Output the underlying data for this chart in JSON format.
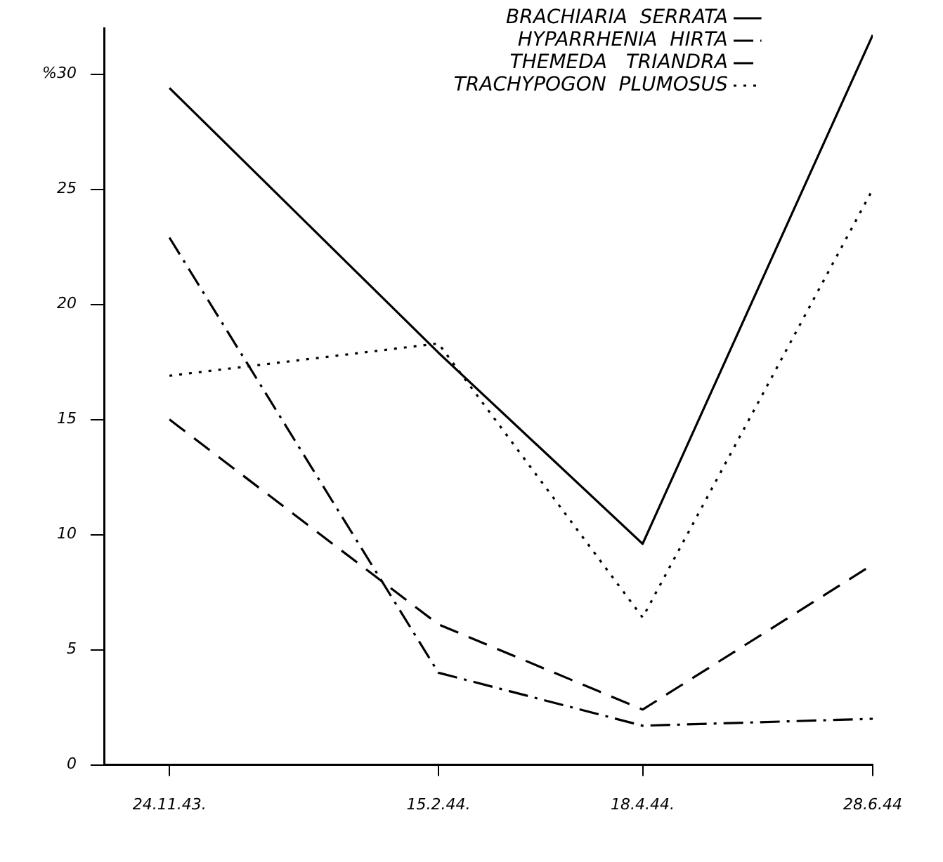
{
  "chart_data": {
    "type": "line",
    "x": [
      "1943-11-24",
      "1944-02-15",
      "1944-04-18",
      "1944-06-28"
    ],
    "xlim": [
      "1943-11-04",
      "1944-06-28"
    ],
    "xticks": [
      {
        "value": "1943-11-24",
        "label": "24.11.43."
      },
      {
        "value": "1944-02-15",
        "label": "15.2.44."
      },
      {
        "value": "1944-04-18",
        "label": "18.4.44."
      },
      {
        "value": "1944-06-28",
        "label": "28.6.44"
      }
    ],
    "ylim": [
      0,
      32
    ],
    "yticks": [
      0,
      5,
      10,
      15,
      20,
      25,
      {
        "value": 30,
        "label": "%30"
      }
    ],
    "series": [
      {
        "name": "BRACHIARIA  SERRATA",
        "color": "#000000",
        "line_style": "solid",
        "values": [
          29.4,
          17.9,
          9.6,
          31.7
        ]
      },
      {
        "name": "HYPARRHENIA  HIRTA",
        "color": "#000000",
        "line_style": "dashdot",
        "values": [
          22.9,
          4.0,
          1.7,
          2.0
        ]
      },
      {
        "name": "THEMEDA   TRIANDRA",
        "color": "#000000",
        "line_style": "dashed",
        "values": [
          15,
          6.1,
          2.4,
          8.7
        ]
      },
      {
        "name": "TRACHYPOGON  PLUMOSUS",
        "color": "#000000",
        "line_style": "dotted",
        "values": [
          16.9,
          18.3,
          6.4,
          25
        ]
      }
    ],
    "legend": "top",
    "grid": false,
    "marker": "none"
  }
}
